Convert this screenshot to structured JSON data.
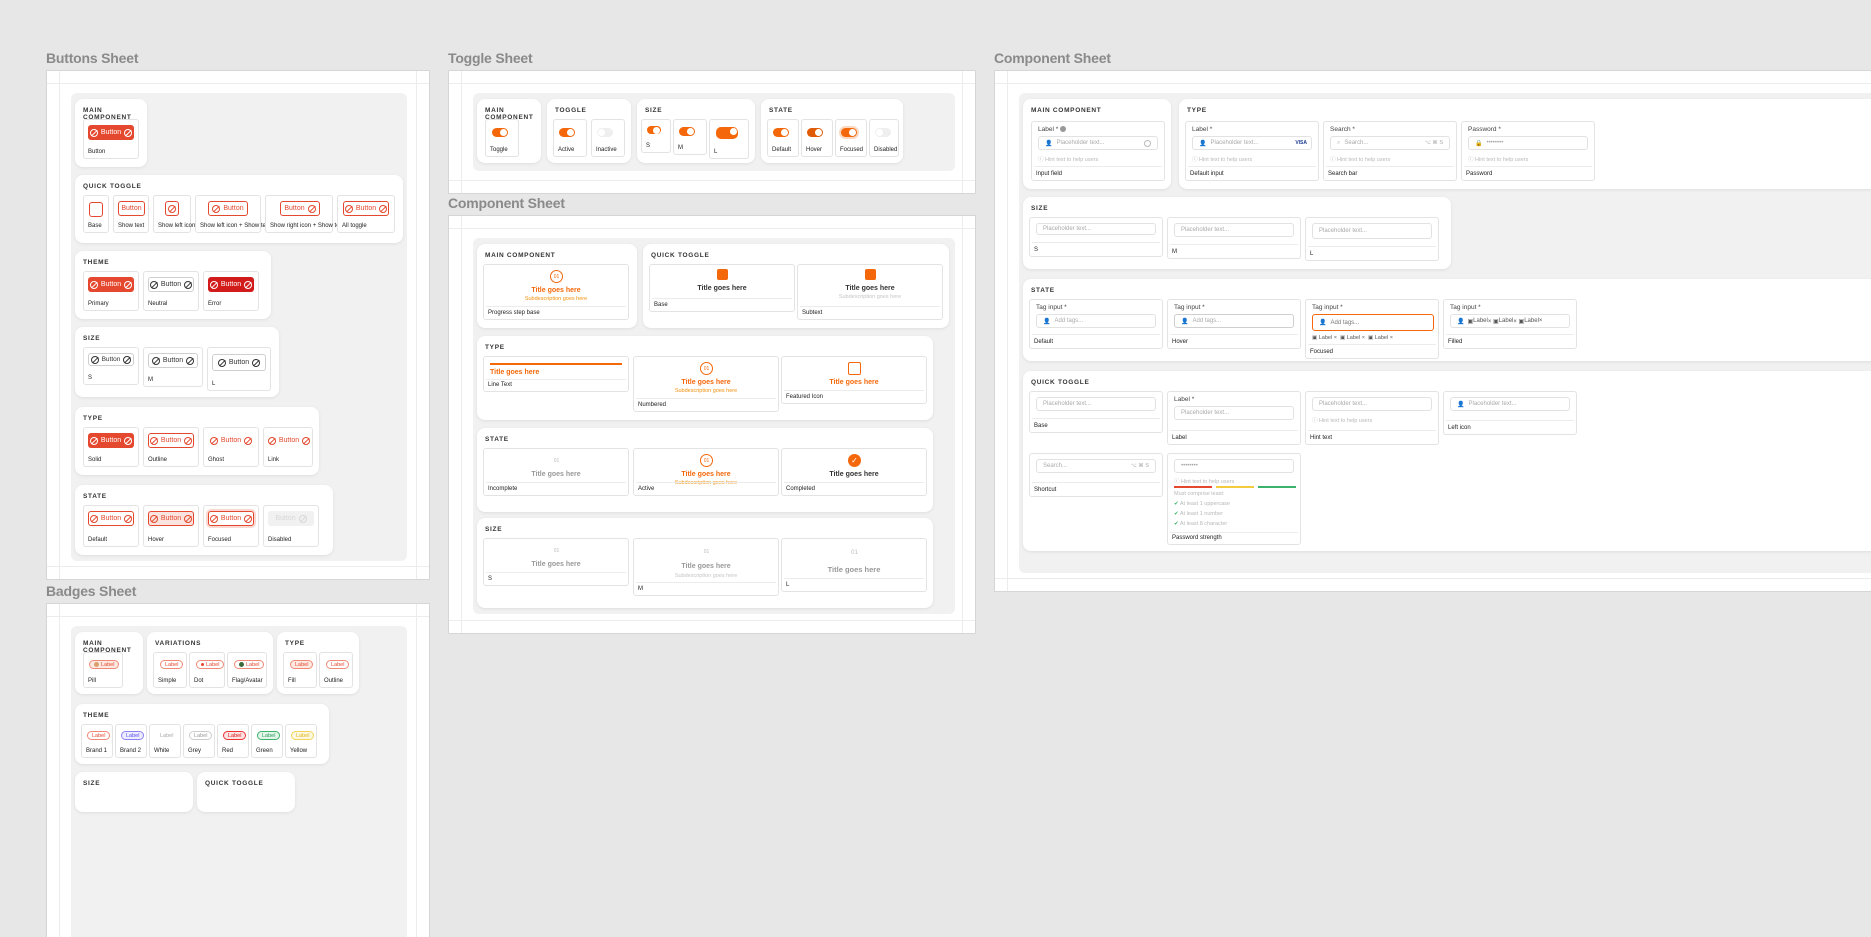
{
  "sheets": {
    "buttons": "Buttons Sheet",
    "toggle": "Toggle Sheet",
    "component_mid": "Component Sheet",
    "component_right": "Component Sheet",
    "badges": "Badges Sheet"
  },
  "colors": {
    "brand": "#f4680b",
    "danger": "#e4482e",
    "error": "#d21b1b"
  },
  "btn": {
    "main": "MAIN COMPONENT",
    "button": "Button",
    "main_cap": "Button",
    "quick": "QUICK TOGGLE",
    "quick_caps": [
      "Base",
      "Show text",
      "Show left icon",
      "Show left icon + Show text",
      "Show right icon + Show text",
      "All toggle"
    ],
    "theme": "THEME",
    "theme_caps": [
      "Primary",
      "Neutral",
      "Error"
    ],
    "size": "SIZE",
    "size_caps": [
      "S",
      "M",
      "L"
    ],
    "type": "TYPE",
    "type_caps": [
      "Solid",
      "Outline",
      "Ghost",
      "Link"
    ],
    "state": "STATE",
    "state_caps": [
      "Default",
      "Hover",
      "Focused",
      "Disabled"
    ]
  },
  "toggle": {
    "main": "MAIN COMPONENT",
    "main_cap": "Toggle",
    "toggle": "TOGGLE",
    "toggle_caps": [
      "Active",
      "Inactive"
    ],
    "size": "SIZE",
    "size_caps": [
      "S",
      "M",
      "L"
    ],
    "state": "STATE",
    "state_caps": [
      "Default",
      "Hover",
      "Focused",
      "Disabled"
    ]
  },
  "progress": {
    "main": "MAIN COMPONENT",
    "quick": "QUICK TOGGLE",
    "type": "TYPE",
    "state": "STATE",
    "size": "SIZE",
    "title": "Title goes here",
    "sub": "Subdescription goes here",
    "num": "01",
    "main_cap": "Progress step base",
    "quick_caps": [
      "Base",
      "Subtext"
    ],
    "type_caps": [
      "Line Text",
      "Numbered",
      "Featured Icon"
    ],
    "state_caps": [
      "Incomplete",
      "Active",
      "Completed"
    ],
    "size_caps": [
      "S",
      "M",
      "L"
    ]
  },
  "input": {
    "main": "MAIN COMPONENT",
    "type": "TYPE",
    "size": "SIZE",
    "state": "STATE",
    "quick": "QUICK TOGGLE",
    "label": "Label *",
    "placeholder": "Placeholder text...",
    "hint": "Hint text to help users",
    "search_label": "Search *",
    "search_ph": "Search...",
    "search_hint": "Hint text to help users",
    "password_label": "Password *",
    "password_ph": "••••••••",
    "kbd": "⌥ ⌘ S",
    "visa": "VISA",
    "main_cap": "Input field",
    "type_caps": [
      "Default input",
      "Search bar",
      "Password"
    ],
    "size_caps": [
      "S",
      "M",
      "L"
    ],
    "tag_label": "Tag input *",
    "tag_ph": "Add tags...",
    "tag": "Label",
    "state_caps": [
      "Default",
      "Hover",
      "Focused",
      "Filled"
    ],
    "quick_caps": [
      "Base",
      "Label",
      "Hint text",
      "Left icon",
      "Shortcut",
      "Password strength"
    ],
    "pw_hint": "Hint text to help users",
    "pw_rules_title": "Must comprise least:",
    "pw_rules": [
      "At least 1 uppercase",
      "At least 1 number",
      "At least 8 character"
    ]
  },
  "badge": {
    "main": "MAIN COMPONENT",
    "variations": "VARIATIONS",
    "type": "TYPE",
    "theme": "THEME",
    "size": "SIZE",
    "quick": "QUICK TOGGLE",
    "label": "Label",
    "main_cap": "Pill",
    "var_caps": [
      "Simple",
      "Dot",
      "Flag/Avatar"
    ],
    "type_caps": [
      "Fill",
      "Outline"
    ],
    "theme_caps": [
      "Brand 1",
      "Brand 2",
      "White",
      "Grey",
      "Red",
      "Green",
      "Yellow"
    ]
  }
}
